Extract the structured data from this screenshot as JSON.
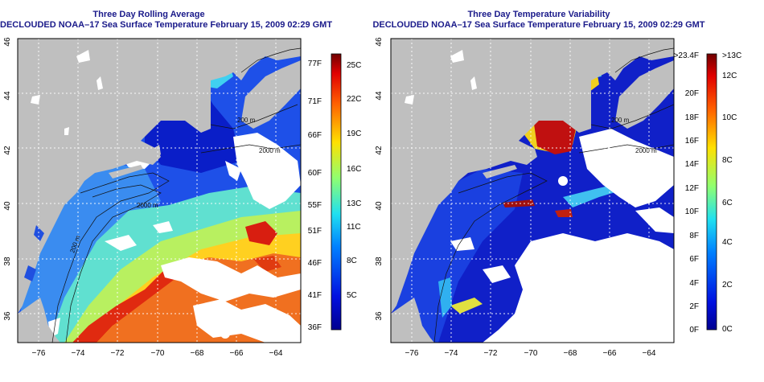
{
  "left_panel": {
    "title_line1": "Three Day Rolling Average",
    "title_line2": "DECLOUDED NOAA–17 Sea Surface Temperature February 15, 2009 02:29 GMT",
    "x_ticks": [
      "−76",
      "−74",
      "−72",
      "−70",
      "−68",
      "−66",
      "−64"
    ],
    "y_ticks": [
      "46",
      "44",
      "42",
      "40",
      "38",
      "36"
    ],
    "contour_labels": [
      "200 m",
      "2000 m",
      "200 m",
      "2000 m"
    ],
    "colorbar": {
      "fahrenheit": [
        "77F",
        "71F",
        "66F",
        "60F",
        "55F",
        "51F",
        "46F",
        "41F",
        "36F"
      ],
      "celsius": [
        "25C",
        "22C",
        "19C",
        "16C",
        "13C",
        "11C",
        "8C",
        "5C"
      ]
    }
  },
  "right_panel": {
    "title_line1": "Three Day Temperature Variability",
    "title_line2": "DECLOUDED NOAA–17 Sea Surface Temperature February 15, 2009 02:29 GMT",
    "x_ticks": [
      "−76",
      "−74",
      "−72",
      "−70",
      "−68",
      "−66",
      "−64"
    ],
    "y_ticks": [
      "46",
      "44",
      "42",
      "40",
      "38",
      "36"
    ],
    "contour_labels": [
      "200 m",
      "2000 m"
    ],
    "colorbar": {
      "fahrenheit": [
        ">23.4F",
        "20F",
        "18F",
        "16F",
        "14F",
        "12F",
        "10F",
        "8F",
        "6F",
        "4F",
        "2F",
        "0F"
      ],
      "celsius": [
        ">13C",
        "12C",
        "10C",
        "8C",
        "6C",
        "4C",
        "2C",
        "0C"
      ]
    }
  },
  "colors": {
    "land": "#c0c0c0",
    "water_cold": "#1430d0",
    "water_warm": "#e04a10",
    "title": "#1a1a8a",
    "cloud": "#ffffff"
  }
}
